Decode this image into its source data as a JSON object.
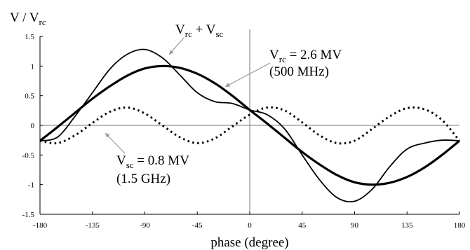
{
  "chart_data": {
    "type": "line",
    "ylabel": {
      "main": "V / V",
      "sub": "rc"
    },
    "xlabel": "phase (degree)",
    "xlim": [
      -180,
      180
    ],
    "ylim": [
      -1.5,
      1.5
    ],
    "xticks": [
      -180,
      -135,
      -90,
      -45,
      0,
      45,
      90,
      135,
      180
    ],
    "yticks": [
      1.5,
      1,
      0.5,
      0,
      -0.5,
      -1,
      -1.5
    ],
    "xtick_labels": [
      "-180",
      "-135",
      "-90",
      "-45",
      "0",
      "45",
      "90",
      "135",
      "180"
    ],
    "ytick_labels": [
      "1.5",
      "1",
      "0.5",
      "0",
      "-0.5",
      "-1",
      "-1.5"
    ],
    "grid": false,
    "reference_lines": {
      "x": 0,
      "y": 0
    },
    "series": [
      {
        "key": "rc",
        "style": "thick-solid",
        "x": [
          -180,
          -165,
          -150,
          -135,
          -120,
          -105,
          -90,
          -75,
          -60,
          -45,
          -30,
          -15,
          0,
          15,
          30,
          45,
          60,
          75,
          90,
          105,
          120,
          135,
          150,
          165,
          180
        ],
        "y": [
          -0.26,
          -0.03,
          0.21,
          0.45,
          0.66,
          0.84,
          0.96,
          1.0,
          0.97,
          0.87,
          0.71,
          0.5,
          0.26,
          0.03,
          -0.21,
          -0.45,
          -0.66,
          -0.84,
          -0.96,
          -1.0,
          -0.97,
          -0.87,
          -0.71,
          -0.5,
          -0.26
        ]
      },
      {
        "key": "sc",
        "style": "dotted",
        "x": [
          -180,
          -165,
          -150,
          -135,
          -120,
          -105,
          -90,
          -75,
          -60,
          -45,
          -30,
          -15,
          0,
          15,
          30,
          45,
          60,
          75,
          90,
          105,
          120,
          135,
          150,
          165,
          180
        ],
        "y": [
          -0.26,
          -0.3,
          -0.17,
          0.04,
          0.23,
          0.3,
          0.2,
          0.0,
          -0.2,
          -0.3,
          -0.22,
          -0.02,
          0.18,
          0.3,
          0.25,
          0.05,
          -0.17,
          -0.3,
          -0.26,
          -0.06,
          0.15,
          0.29,
          0.27,
          0.09,
          -0.26
        ]
      },
      {
        "key": "sum",
        "style": "solid",
        "x": [
          -180,
          -165,
          -150,
          -135,
          -120,
          -105,
          -90,
          -75,
          -60,
          -45,
          -30,
          -15,
          0,
          15,
          30,
          45,
          60,
          75,
          90,
          105,
          120,
          135,
          150,
          165,
          180
        ],
        "y": [
          -0.26,
          -0.2,
          0.15,
          0.55,
          0.95,
          1.2,
          1.28,
          1.14,
          0.85,
          0.55,
          0.4,
          0.37,
          0.26,
          0.18,
          -0.06,
          -0.5,
          -0.92,
          -1.22,
          -1.28,
          -1.08,
          -0.7,
          -0.4,
          -0.3,
          -0.25,
          -0.26
        ]
      }
    ],
    "annotations": [
      {
        "key": "sum",
        "parts": [
          {
            "t": "V"
          },
          {
            "t": "rc",
            "sub": true
          },
          {
            "t": " + V"
          },
          {
            "t": "sc",
            "sub": true
          }
        ]
      },
      {
        "key": "rc",
        "parts": [
          {
            "t": "V"
          },
          {
            "t": "rc",
            "sub": true
          },
          {
            "t": " = 2.6 MV"
          }
        ],
        "second_line": "(500 MHz)"
      },
      {
        "key": "sc",
        "parts": [
          {
            "t": "V"
          },
          {
            "t": "sc",
            "sub": true
          },
          {
            "t": "  = 0.8 MV"
          }
        ],
        "second_line": "(1.5 GHz)"
      }
    ]
  }
}
